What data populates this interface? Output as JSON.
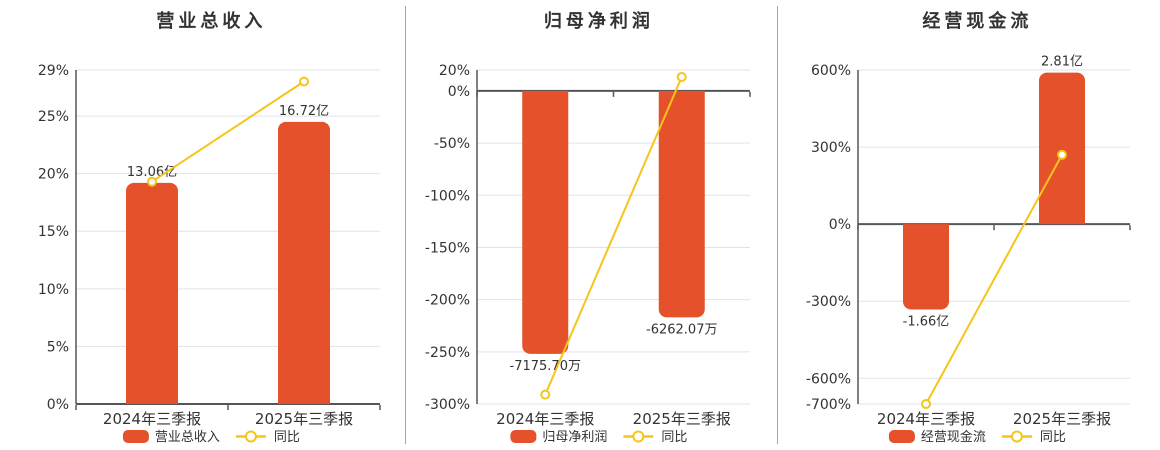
{
  "page": {
    "background": "#ffffff"
  },
  "colors": {
    "bar": "#e5512b",
    "line": "#f5c51a",
    "line_marker_fill": "#ffffff",
    "grid": "#e0e3ee",
    "axis": "#53575c",
    "text": "#333333",
    "title": "#333333",
    "separator": "#a7a7a7",
    "background": "#ffffff"
  },
  "chart_data": [
    {
      "id": "revenue",
      "type": "bar",
      "title": "营业总收入",
      "categories": [
        "2024年三季报",
        "2025年三季报"
      ],
      "ylim": [
        0,
        29
      ],
      "grid": true,
      "legend_position": "bottom",
      "yticks": [
        {
          "value": 29,
          "label": "29%"
        },
        {
          "value": 25,
          "label": "25%"
        },
        {
          "value": 20,
          "label": "20%"
        },
        {
          "value": 15,
          "label": "15%"
        },
        {
          "value": 10,
          "label": "10%"
        },
        {
          "value": 5,
          "label": "5%"
        },
        {
          "value": 0,
          "label": "0%"
        }
      ],
      "series": [
        {
          "name": "营业总收入",
          "type": "bar",
          "value_labels": [
            "13.06亿",
            "16.72亿"
          ],
          "plotted_values": [
            19.2,
            24.5
          ]
        },
        {
          "name": "同比",
          "type": "line",
          "plotted_values": [
            19.3,
            28.0
          ]
        }
      ]
    },
    {
      "id": "net-profit",
      "type": "bar",
      "title": "归母净利润",
      "categories": [
        "2024年三季报",
        "2025年三季报"
      ],
      "ylim": [
        -300,
        20
      ],
      "grid": true,
      "legend_position": "bottom",
      "yticks": [
        {
          "value": 20,
          "label": "20%"
        },
        {
          "value": 0,
          "label": "0%"
        },
        {
          "value": -50,
          "label": "-50%"
        },
        {
          "value": -100,
          "label": "-100%"
        },
        {
          "value": -150,
          "label": "-150%"
        },
        {
          "value": -200,
          "label": "-200%"
        },
        {
          "value": -250,
          "label": "-250%"
        },
        {
          "value": -300,
          "label": "-300%"
        }
      ],
      "series": [
        {
          "name": "归母净利润",
          "type": "bar",
          "value_labels": [
            "-7175.70万",
            "-6262.07万"
          ],
          "plotted_values": [
            -252,
            -217
          ]
        },
        {
          "name": "同比",
          "type": "line",
          "plotted_values": [
            -291,
            13.3
          ]
        }
      ]
    },
    {
      "id": "operating-cash-flow",
      "type": "bar",
      "title": "经营现金流",
      "categories": [
        "2024年三季报",
        "2025年三季报"
      ],
      "ylim": [
        -700,
        600
      ],
      "grid": true,
      "legend_position": "bottom",
      "yticks": [
        {
          "value": 600,
          "label": "600%"
        },
        {
          "value": 300,
          "label": "300%"
        },
        {
          "value": 0,
          "label": "0%"
        },
        {
          "value": -300,
          "label": "-300%"
        },
        {
          "value": -600,
          "label": "-600%"
        },
        {
          "value": -700,
          "label": "-700%"
        }
      ],
      "series": [
        {
          "name": "经营现金流",
          "type": "bar",
          "value_labels": [
            "-1.66亿",
            "2.81亿"
          ],
          "plotted_values": [
            -332,
            590
          ]
        },
        {
          "name": "同比",
          "type": "line",
          "plotted_values": [
            -700,
            270
          ]
        }
      ]
    }
  ]
}
